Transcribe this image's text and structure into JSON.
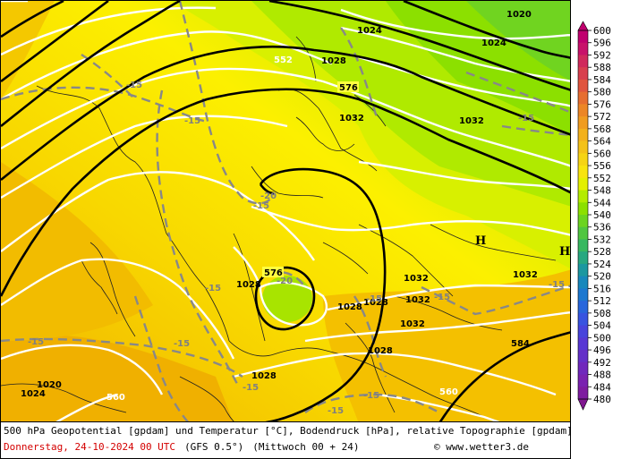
{
  "caption": {
    "line1": "500 hPa Geopotential [gpdam] und Temperatur [°C], Bodendruck [hPa], relative Topographie [gpdam]",
    "date": "Donnerstag, 24-10-2024  00 UTC",
    "model": "(GFS 0.5°)",
    "run": "(Mittwoch 00 + 24)",
    "copyright_symbol": "©",
    "site": "www.wetter3.de"
  },
  "legend": {
    "levels": [
      "600",
      "596",
      "592",
      "588",
      "584",
      "580",
      "576",
      "572",
      "568",
      "564",
      "560",
      "556",
      "552",
      "548",
      "544",
      "540",
      "536",
      "532",
      "528",
      "524",
      "520",
      "516",
      "512",
      "508",
      "504",
      "500",
      "496",
      "492",
      "488",
      "484",
      "480"
    ],
    "colors": [
      "#c0006e",
      "#c8126a",
      "#d02a5c",
      "#d8404e",
      "#e0553e",
      "#e66e30",
      "#ec8626",
      "#f09c20",
      "#f3b11c",
      "#f4c218",
      "#f6d414",
      "#f8e40e",
      "#e4f000",
      "#b4ec00",
      "#8ce000",
      "#6cd420",
      "#50c640",
      "#38b860",
      "#28a880",
      "#1c98a0",
      "#1888bc",
      "#1c78d0",
      "#2866dc",
      "#3854e0",
      "#4844dc",
      "#5838d4",
      "#6430c8",
      "#7028bc",
      "#7a22b0",
      "#7e1ca0",
      "#801890"
    ]
  },
  "map": {
    "geopotential_labels": [
      "576",
      "576",
      "552",
      "584"
    ],
    "pressure_labels": [
      "1028",
      "1024",
      "1024",
      "1020",
      "1032",
      "1032",
      "1032",
      "1028",
      "1032",
      "1028",
      "1032",
      "1032",
      "1028",
      "1028",
      "1028",
      "1024",
      "1020"
    ],
    "temperature_labels": [
      "-15",
      "-15",
      "-15",
      "-20",
      "-20",
      "-15",
      "-15",
      "-15",
      "-15",
      "-15",
      "-15",
      "-15",
      "-15",
      "-15",
      "-15"
    ],
    "high_labels": [
      "H",
      "H"
    ],
    "relative_topography_labels": [
      "552",
      "560",
      "560"
    ]
  },
  "colors": {
    "geopotential_line": "#000000",
    "isobar": "#ffffff",
    "isotherm": "#808080"
  }
}
